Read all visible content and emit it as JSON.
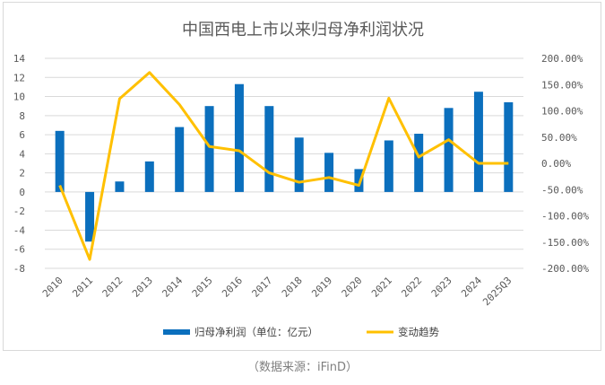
{
  "chart_data": {
    "type": "bar+line",
    "title": "中国西电上市以来归母净利润状况",
    "categories": [
      "2010",
      "2011",
      "2012",
      "2013",
      "2014",
      "2015",
      "2016",
      "2017",
      "2018",
      "2019",
      "2020",
      "2021",
      "2022",
      "2023",
      "2024",
      "2025Q3"
    ],
    "series": [
      {
        "name": "归母净利润（单位：亿元）",
        "type": "bar",
        "axis": "left",
        "color": "#0b6fbd",
        "values": [
          6.4,
          -5.2,
          1.1,
          3.2,
          6.8,
          9.0,
          11.3,
          9.0,
          5.7,
          4.1,
          2.4,
          5.4,
          6.1,
          8.8,
          10.5,
          9.4
        ]
      },
      {
        "name": "变动趋势",
        "type": "line",
        "axis": "right",
        "color": "#ffc000",
        "values": [
          -42,
          -183,
          123,
          173,
          112,
          32,
          24,
          -18,
          -36,
          -27,
          -42,
          124,
          12,
          45,
          0,
          0
        ]
      }
    ],
    "left_axis": {
      "min": -8,
      "max": 14,
      "step": 2,
      "ticks": [
        "-8",
        "-6",
        "-4",
        "-2",
        "0",
        "2",
        "4",
        "6",
        "8",
        "10",
        "12",
        "14"
      ]
    },
    "right_axis": {
      "min": -200,
      "max": 200,
      "step": 50,
      "ticks": [
        "-200.00%",
        "-150.00%",
        "-100.00%",
        "-50.00%",
        "0.00%",
        "50.00%",
        "100.00%",
        "150.00%",
        "200.00%"
      ]
    },
    "legend": {
      "position": "bottom",
      "bar_label": "归母净利润（单位：亿元）",
      "line_label": "变动趋势"
    }
  },
  "source": "（数据来源：iFinD）"
}
